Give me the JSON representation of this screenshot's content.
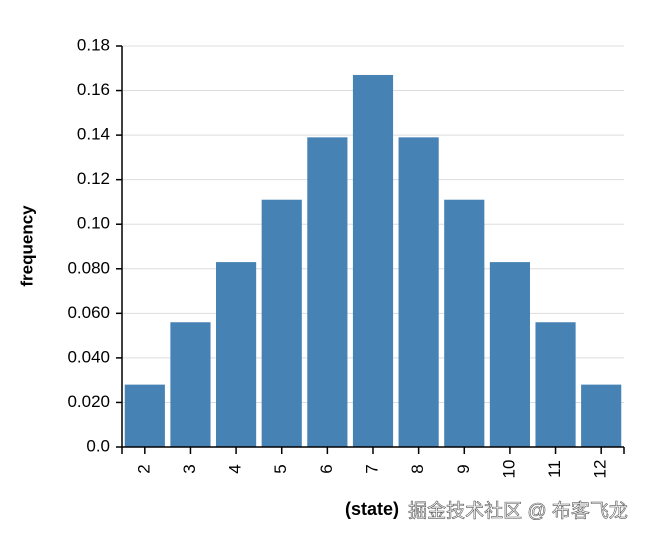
{
  "chart_data": {
    "type": "bar",
    "categories": [
      "2",
      "3",
      "4",
      "5",
      "6",
      "7",
      "8",
      "9",
      "10",
      "11",
      "12"
    ],
    "values": [
      0.028,
      0.056,
      0.083,
      0.111,
      0.139,
      0.167,
      0.139,
      0.111,
      0.083,
      0.056,
      0.028
    ],
    "color": "#4682b4",
    "ylim": [
      0,
      0.18
    ],
    "yticks": [
      {
        "value": 0,
        "label": "0.0"
      },
      {
        "value": 0.02,
        "label": "0.020"
      },
      {
        "value": 0.04,
        "label": "0.040"
      },
      {
        "value": 0.06,
        "label": "0.060"
      },
      {
        "value": 0.08,
        "label": "0.080"
      },
      {
        "value": 0.1,
        "label": "0.10"
      },
      0.12,
      0.14,
      0.16,
      0.18
    ],
    "grid": true,
    "y_label": "frequency",
    "x_label": "(state)",
    "watermark": "掘金技术社区 @ 布客飞龙"
  }
}
